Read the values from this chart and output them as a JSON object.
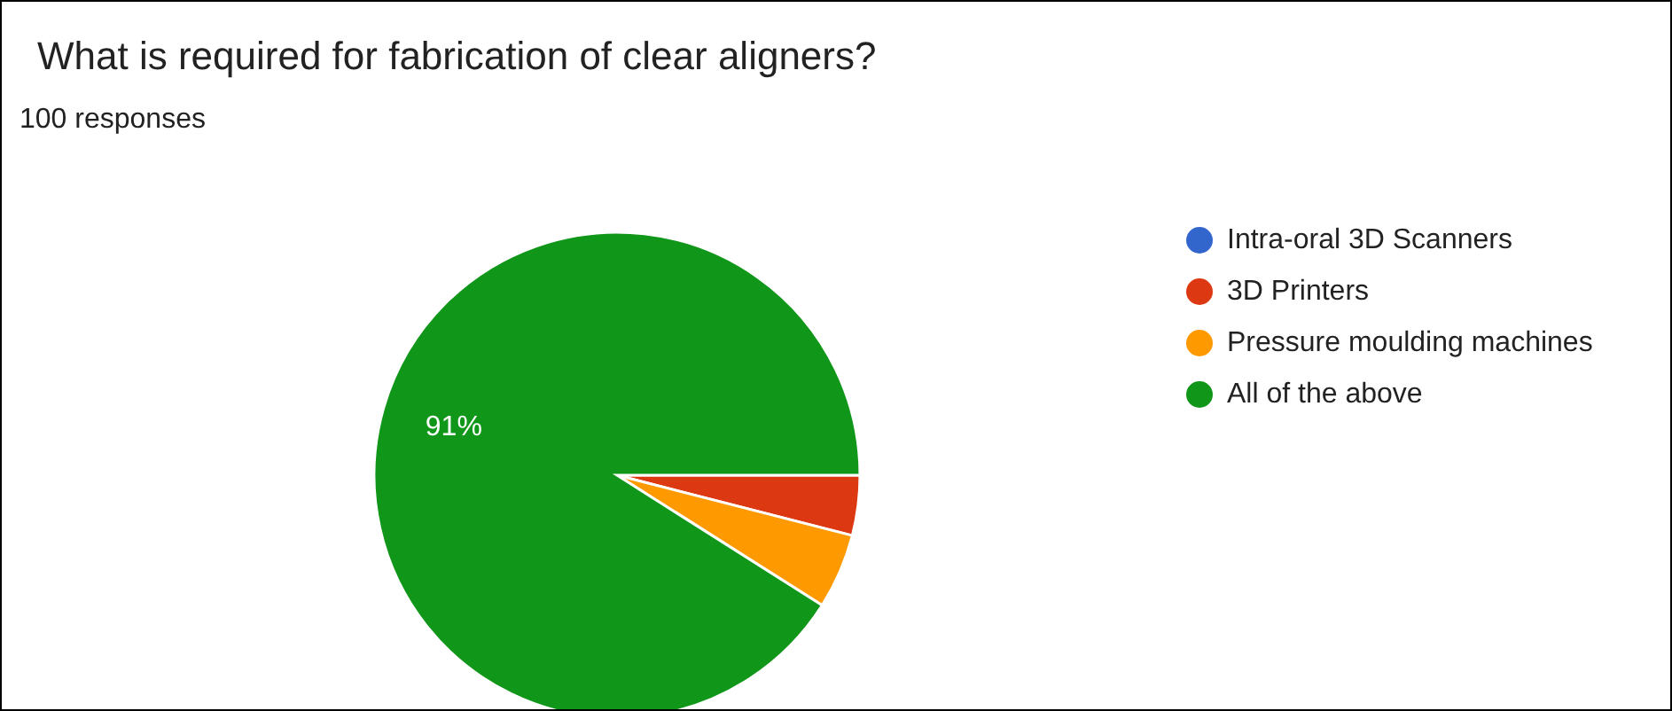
{
  "chart_data": {
    "type": "pie",
    "title": "What is required for fabrication of clear aligners?",
    "subtitle": "100 responses",
    "categories": [
      "Intra-oral 3D Scanners",
      "3D Printers",
      "Pressure moulding machines",
      "All of the above"
    ],
    "values": [
      0,
      4,
      5,
      91
    ],
    "colors": [
      "#3366cc",
      "#dc3912",
      "#ff9900",
      "#109618"
    ],
    "value_labels": [
      null,
      null,
      null,
      "91%"
    ],
    "legend": "right"
  }
}
